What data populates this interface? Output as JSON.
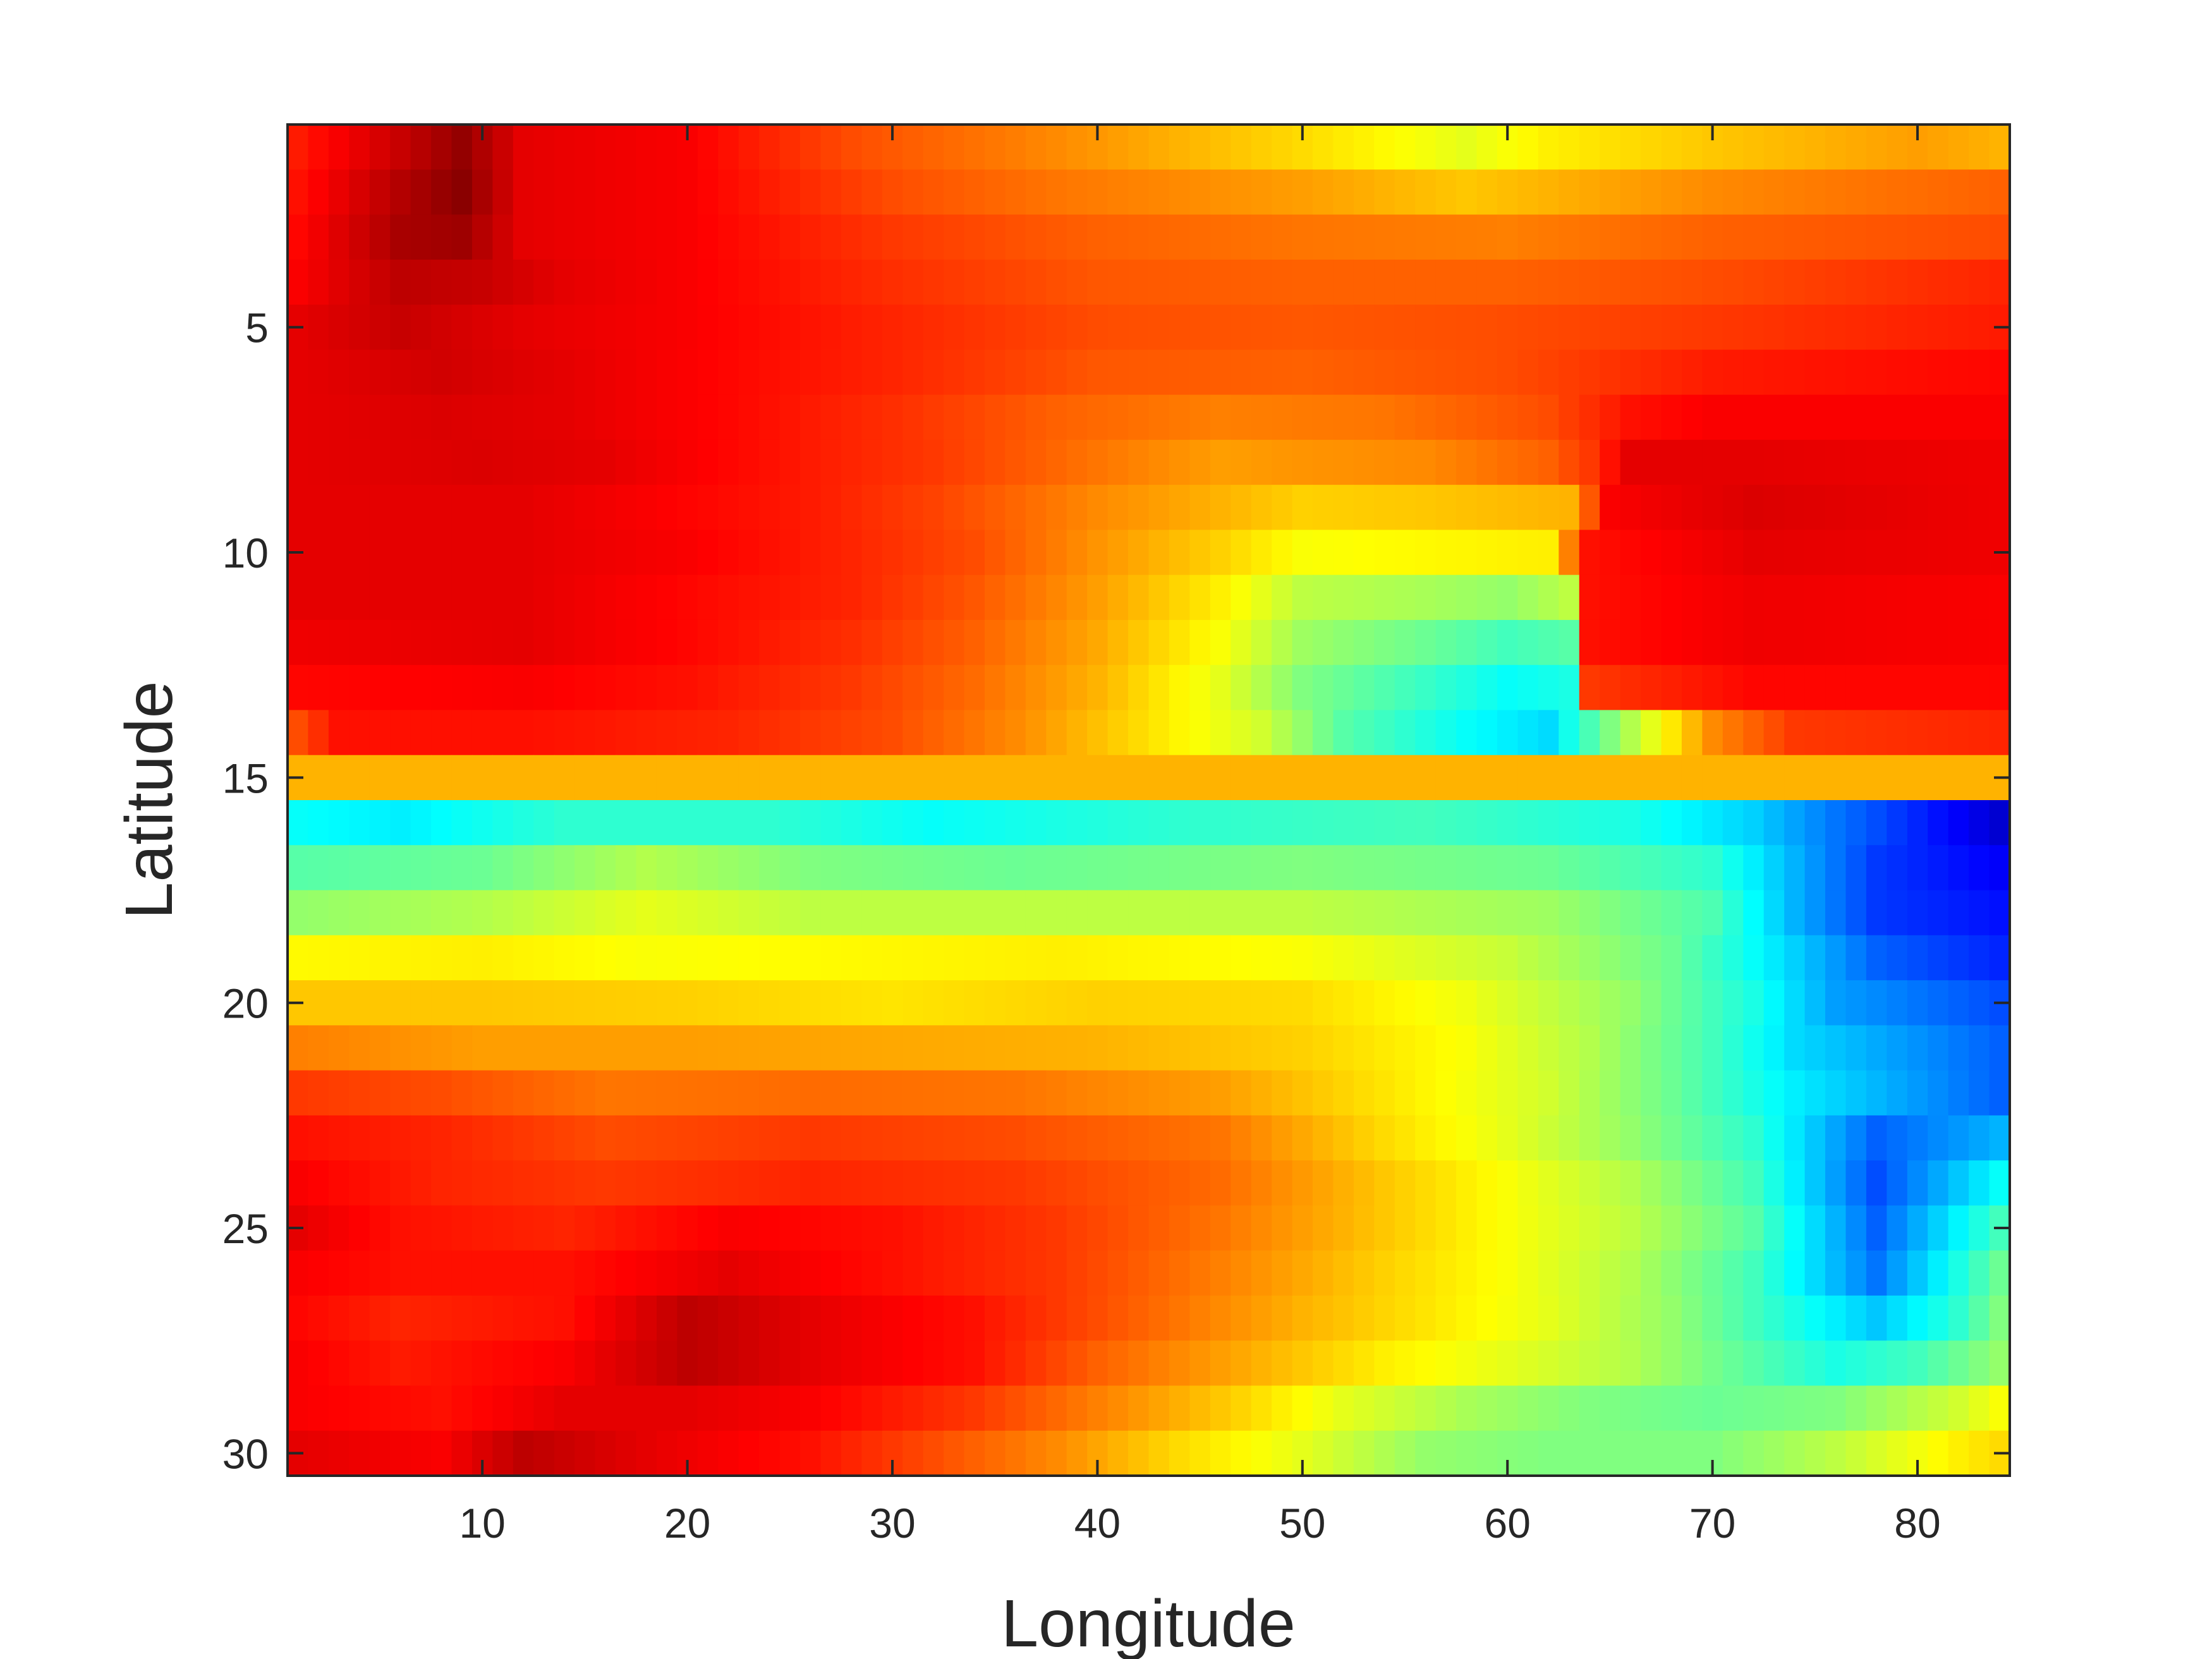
{
  "chart_data": {
    "type": "heatmap",
    "title": "",
    "xlabel": "Longitude",
    "ylabel": "Latitude",
    "colormap": "jet",
    "x_range": [
      0.5,
      84.5
    ],
    "y_range": [
      0.5,
      30.5
    ],
    "y_reversed": true,
    "x_ticks": [
      10,
      20,
      30,
      40,
      50,
      60,
      70,
      80
    ],
    "x_tick_labels": [
      "10",
      "20",
      "30",
      "40",
      "50",
      "60",
      "70",
      "80"
    ],
    "y_ticks": [
      5,
      10,
      15,
      20,
      25,
      30
    ],
    "y_tick_labels": [
      "5",
      "10",
      "15",
      "20",
      "25",
      "30"
    ],
    "grid": false,
    "n_cols": 84,
    "n_rows": 30,
    "row_profiles": [
      [
        [
          1,
          0.85
        ],
        [
          6,
          0.93
        ],
        [
          9,
          0.98
        ],
        [
          12,
          0.9
        ],
        [
          20,
          0.88
        ],
        [
          28,
          0.8
        ],
        [
          38,
          0.74
        ],
        [
          50,
          0.66
        ],
        [
          58,
          0.6
        ],
        [
          62,
          0.64
        ],
        [
          70,
          0.68
        ],
        [
          80,
          0.72
        ],
        [
          84,
          0.7
        ]
      ],
      [
        [
          1,
          0.86
        ],
        [
          6,
          0.95
        ],
        [
          9,
          0.99
        ],
        [
          12,
          0.9
        ],
        [
          20,
          0.88
        ],
        [
          30,
          0.8
        ],
        [
          38,
          0.76
        ],
        [
          50,
          0.72
        ],
        [
          58,
          0.68
        ],
        [
          62,
          0.7
        ],
        [
          70,
          0.74
        ],
        [
          84,
          0.78
        ]
      ],
      [
        [
          1,
          0.87
        ],
        [
          6,
          0.96
        ],
        [
          9,
          0.97
        ],
        [
          12,
          0.9
        ],
        [
          20,
          0.88
        ],
        [
          30,
          0.82
        ],
        [
          40,
          0.78
        ],
        [
          50,
          0.76
        ],
        [
          60,
          0.75
        ],
        [
          70,
          0.78
        ],
        [
          84,
          0.8
        ]
      ],
      [
        [
          1,
          0.88
        ],
        [
          6,
          0.94
        ],
        [
          10,
          0.93
        ],
        [
          14,
          0.9
        ],
        [
          20,
          0.88
        ],
        [
          30,
          0.83
        ],
        [
          40,
          0.79
        ],
        [
          50,
          0.78
        ],
        [
          60,
          0.78
        ],
        [
          70,
          0.8
        ],
        [
          84,
          0.84
        ]
      ],
      [
        [
          1,
          0.9
        ],
        [
          6,
          0.93
        ],
        [
          12,
          0.9
        ],
        [
          20,
          0.88
        ],
        [
          30,
          0.84
        ],
        [
          40,
          0.8
        ],
        [
          50,
          0.79
        ],
        [
          60,
          0.8
        ],
        [
          70,
          0.82
        ],
        [
          84,
          0.85
        ]
      ],
      [
        [
          1,
          0.9
        ],
        [
          8,
          0.92
        ],
        [
          14,
          0.9
        ],
        [
          22,
          0.87
        ],
        [
          30,
          0.84
        ],
        [
          40,
          0.79
        ],
        [
          50,
          0.78
        ],
        [
          60,
          0.8
        ],
        [
          66,
          0.83
        ],
        [
          70,
          0.85
        ],
        [
          84,
          0.87
        ]
      ],
      [
        [
          1,
          0.9
        ],
        [
          8,
          0.91
        ],
        [
          14,
          0.9
        ],
        [
          22,
          0.87
        ],
        [
          30,
          0.83
        ],
        [
          38,
          0.78
        ],
        [
          46,
          0.75
        ],
        [
          54,
          0.76
        ],
        [
          62,
          0.8
        ],
        [
          66,
          0.86
        ],
        [
          70,
          0.88
        ],
        [
          84,
          0.88
        ]
      ],
      [
        [
          1,
          0.9
        ],
        [
          10,
          0.91
        ],
        [
          16,
          0.9
        ],
        [
          24,
          0.86
        ],
        [
          32,
          0.82
        ],
        [
          40,
          0.76
        ],
        [
          46,
          0.72
        ],
        [
          50,
          0.73
        ],
        [
          56,
          0.74
        ],
        [
          62,
          0.78
        ],
        [
          64,
          0.82
        ],
        [
          66,
          0.9
        ],
        [
          72,
          0.9
        ],
        [
          84,
          0.89
        ]
      ],
      [
        [
          1,
          0.9
        ],
        [
          12,
          0.9
        ],
        [
          18,
          0.88
        ],
        [
          26,
          0.85
        ],
        [
          32,
          0.81
        ],
        [
          40,
          0.74
        ],
        [
          46,
          0.7
        ],
        [
          50,
          0.67
        ],
        [
          56,
          0.68
        ],
        [
          63,
          0.7
        ],
        [
          65,
          0.88
        ],
        [
          72,
          0.91
        ],
        [
          84,
          0.89
        ]
      ],
      [
        [
          1,
          0.9
        ],
        [
          12,
          0.9
        ],
        [
          20,
          0.88
        ],
        [
          28,
          0.84
        ],
        [
          34,
          0.8
        ],
        [
          40,
          0.73
        ],
        [
          46,
          0.67
        ],
        [
          50,
          0.62
        ],
        [
          56,
          0.63
        ],
        [
          62,
          0.64
        ],
        [
          64,
          0.86
        ],
        [
          72,
          0.9
        ],
        [
          84,
          0.89
        ]
      ],
      [
        [
          1,
          0.9
        ],
        [
          12,
          0.9
        ],
        [
          20,
          0.87
        ],
        [
          28,
          0.84
        ],
        [
          34,
          0.79
        ],
        [
          40,
          0.72
        ],
        [
          46,
          0.64
        ],
        [
          50,
          0.56
        ],
        [
          56,
          0.54
        ],
        [
          60,
          0.52
        ],
        [
          63,
          0.56
        ],
        [
          64,
          0.86
        ],
        [
          72,
          0.89
        ],
        [
          84,
          0.88
        ]
      ],
      [
        [
          1,
          0.89
        ],
        [
          12,
          0.9
        ],
        [
          20,
          0.87
        ],
        [
          28,
          0.83
        ],
        [
          34,
          0.78
        ],
        [
          40,
          0.71
        ],
        [
          46,
          0.62
        ],
        [
          50,
          0.53
        ],
        [
          56,
          0.48
        ],
        [
          60,
          0.44
        ],
        [
          63,
          0.46
        ],
        [
          64,
          0.86
        ],
        [
          72,
          0.89
        ],
        [
          84,
          0.88
        ]
      ],
      [
        [
          1,
          0.87
        ],
        [
          12,
          0.88
        ],
        [
          20,
          0.86
        ],
        [
          28,
          0.82
        ],
        [
          34,
          0.77
        ],
        [
          40,
          0.7
        ],
        [
          46,
          0.6
        ],
        [
          50,
          0.5
        ],
        [
          56,
          0.43
        ],
        [
          60,
          0.38
        ],
        [
          63,
          0.4
        ],
        [
          64,
          0.82
        ],
        [
          72,
          0.87
        ],
        [
          84,
          0.87
        ]
      ],
      [
        [
          1,
          0.8
        ],
        [
          3,
          0.86
        ],
        [
          12,
          0.86
        ],
        [
          22,
          0.84
        ],
        [
          30,
          0.8
        ],
        [
          36,
          0.74
        ],
        [
          42,
          0.66
        ],
        [
          48,
          0.58
        ],
        [
          52,
          0.46
        ],
        [
          58,
          0.38
        ],
        [
          62,
          0.34
        ],
        [
          65,
          0.5
        ],
        [
          67,
          0.6
        ],
        [
          70,
          0.74
        ],
        [
          74,
          0.82
        ],
        [
          84,
          0.84
        ]
      ],
      [
        [
          1,
          0.7
        ],
        [
          84,
          0.7
        ]
      ],
      [
        [
          1,
          0.38
        ],
        [
          6,
          0.36
        ],
        [
          14,
          0.42
        ],
        [
          24,
          0.42
        ],
        [
          32,
          0.38
        ],
        [
          44,
          0.42
        ],
        [
          56,
          0.44
        ],
        [
          66,
          0.4
        ],
        [
          72,
          0.33
        ],
        [
          76,
          0.24
        ],
        [
          80,
          0.16
        ],
        [
          84,
          0.08
        ]
      ],
      [
        [
          1,
          0.46
        ],
        [
          10,
          0.48
        ],
        [
          18,
          0.55
        ],
        [
          26,
          0.5
        ],
        [
          36,
          0.48
        ],
        [
          50,
          0.5
        ],
        [
          62,
          0.48
        ],
        [
          70,
          0.42
        ],
        [
          74,
          0.3
        ],
        [
          78,
          0.18
        ],
        [
          84,
          0.12
        ]
      ],
      [
        [
          1,
          0.52
        ],
        [
          10,
          0.55
        ],
        [
          18,
          0.6
        ],
        [
          26,
          0.56
        ],
        [
          38,
          0.56
        ],
        [
          50,
          0.56
        ],
        [
          62,
          0.53
        ],
        [
          70,
          0.45
        ],
        [
          74,
          0.3
        ],
        [
          78,
          0.18
        ],
        [
          84,
          0.14
        ]
      ],
      [
        [
          1,
          0.63
        ],
        [
          10,
          0.64
        ],
        [
          18,
          0.62
        ],
        [
          28,
          0.63
        ],
        [
          38,
          0.64
        ],
        [
          50,
          0.62
        ],
        [
          60,
          0.57
        ],
        [
          68,
          0.48
        ],
        [
          74,
          0.33
        ],
        [
          78,
          0.22
        ],
        [
          84,
          0.16
        ]
      ],
      [
        [
          1,
          0.68
        ],
        [
          10,
          0.68
        ],
        [
          20,
          0.67
        ],
        [
          30,
          0.65
        ],
        [
          40,
          0.67
        ],
        [
          50,
          0.66
        ],
        [
          58,
          0.61
        ],
        [
          66,
          0.52
        ],
        [
          72,
          0.4
        ],
        [
          76,
          0.28
        ],
        [
          84,
          0.2
        ]
      ],
      [
        [
          1,
          0.75
        ],
        [
          10,
          0.72
        ],
        [
          20,
          0.72
        ],
        [
          30,
          0.71
        ],
        [
          40,
          0.7
        ],
        [
          50,
          0.67
        ],
        [
          58,
          0.62
        ],
        [
          64,
          0.55
        ],
        [
          70,
          0.44
        ],
        [
          74,
          0.34
        ],
        [
          84,
          0.22
        ]
      ],
      [
        [
          1,
          0.82
        ],
        [
          8,
          0.8
        ],
        [
          16,
          0.76
        ],
        [
          26,
          0.77
        ],
        [
          36,
          0.76
        ],
        [
          46,
          0.72
        ],
        [
          54,
          0.65
        ],
        [
          62,
          0.58
        ],
        [
          68,
          0.48
        ],
        [
          74,
          0.36
        ],
        [
          84,
          0.22
        ]
      ],
      [
        [
          1,
          0.86
        ],
        [
          8,
          0.84
        ],
        [
          16,
          0.8
        ],
        [
          26,
          0.82
        ],
        [
          36,
          0.8
        ],
        [
          46,
          0.76
        ],
        [
          54,
          0.66
        ],
        [
          60,
          0.6
        ],
        [
          66,
          0.52
        ],
        [
          72,
          0.42
        ],
        [
          78,
          0.22
        ],
        [
          84,
          0.3
        ]
      ],
      [
        [
          1,
          0.88
        ],
        [
          8,
          0.84
        ],
        [
          16,
          0.82
        ],
        [
          26,
          0.84
        ],
        [
          36,
          0.82
        ],
        [
          46,
          0.77
        ],
        [
          54,
          0.68
        ],
        [
          60,
          0.62
        ],
        [
          66,
          0.55
        ],
        [
          72,
          0.44
        ],
        [
          78,
          0.2
        ],
        [
          84,
          0.38
        ]
      ],
      [
        [
          1,
          0.9
        ],
        [
          6,
          0.86
        ],
        [
          14,
          0.84
        ],
        [
          22,
          0.88
        ],
        [
          30,
          0.86
        ],
        [
          38,
          0.82
        ],
        [
          46,
          0.76
        ],
        [
          54,
          0.68
        ],
        [
          60,
          0.62
        ],
        [
          66,
          0.56
        ],
        [
          72,
          0.46
        ],
        [
          78,
          0.22
        ],
        [
          84,
          0.44
        ]
      ],
      [
        [
          1,
          0.88
        ],
        [
          6,
          0.86
        ],
        [
          14,
          0.86
        ],
        [
          22,
          0.9
        ],
        [
          30,
          0.86
        ],
        [
          38,
          0.82
        ],
        [
          46,
          0.75
        ],
        [
          54,
          0.67
        ],
        [
          60,
          0.62
        ],
        [
          66,
          0.55
        ],
        [
          72,
          0.44
        ],
        [
          78,
          0.24
        ],
        [
          84,
          0.48
        ]
      ],
      [
        [
          1,
          0.87
        ],
        [
          6,
          0.84
        ],
        [
          14,
          0.86
        ],
        [
          20,
          0.94
        ],
        [
          26,
          0.9
        ],
        [
          34,
          0.86
        ],
        [
          42,
          0.78
        ],
        [
          50,
          0.7
        ],
        [
          56,
          0.65
        ],
        [
          62,
          0.6
        ],
        [
          68,
          0.52
        ],
        [
          74,
          0.4
        ],
        [
          78,
          0.32
        ],
        [
          82,
          0.42
        ],
        [
          84,
          0.5
        ]
      ],
      [
        [
          1,
          0.88
        ],
        [
          6,
          0.85
        ],
        [
          14,
          0.88
        ],
        [
          20,
          0.94
        ],
        [
          26,
          0.9
        ],
        [
          34,
          0.86
        ],
        [
          40,
          0.78
        ],
        [
          48,
          0.7
        ],
        [
          54,
          0.64
        ],
        [
          60,
          0.6
        ],
        [
          66,
          0.55
        ],
        [
          72,
          0.46
        ],
        [
          76,
          0.4
        ],
        [
          80,
          0.44
        ],
        [
          84,
          0.52
        ]
      ],
      [
        [
          1,
          0.88
        ],
        [
          8,
          0.86
        ],
        [
          14,
          0.9
        ],
        [
          20,
          0.9
        ],
        [
          26,
          0.88
        ],
        [
          34,
          0.82
        ],
        [
          40,
          0.75
        ],
        [
          46,
          0.68
        ],
        [
          52,
          0.6
        ],
        [
          58,
          0.54
        ],
        [
          64,
          0.5
        ],
        [
          70,
          0.48
        ],
        [
          76,
          0.5
        ],
        [
          82,
          0.58
        ],
        [
          84,
          0.62
        ]
      ],
      [
        [
          1,
          0.9
        ],
        [
          8,
          0.88
        ],
        [
          12,
          0.94
        ],
        [
          18,
          0.9
        ],
        [
          26,
          0.86
        ],
        [
          32,
          0.8
        ],
        [
          38,
          0.74
        ],
        [
          44,
          0.66
        ],
        [
          50,
          0.6
        ],
        [
          56,
          0.52
        ],
        [
          62,
          0.5
        ],
        [
          70,
          0.5
        ],
        [
          76,
          0.56
        ],
        [
          82,
          0.64
        ],
        [
          84,
          0.66
        ]
      ]
    ]
  }
}
